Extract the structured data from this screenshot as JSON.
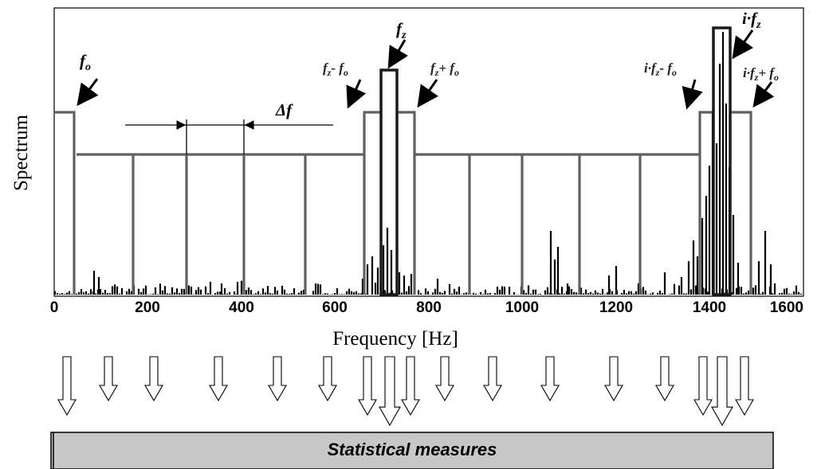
{
  "axes": {
    "ylabel": "Spectrum",
    "xlabel": "Frequency [Hz]",
    "xlim": [
      0,
      1600
    ],
    "xticks": [
      "0",
      "200",
      "400",
      "600",
      "800",
      "1000",
      "1200",
      "1400",
      "1600"
    ]
  },
  "labels": {
    "fo": "f",
    "fo_sub": "o",
    "fz": "f",
    "fz_sub": "z",
    "fz_minus_fo": "f",
    "fz_minus_fo_sub": "z",
    "fz_minus_fo_rest": "- f",
    "fz_minus_fo_sub2": "o",
    "fz_plus_fo": "f",
    "fz_plus_fo_sub": "z",
    "fz_plus_fo_rest": "+ f",
    "fz_plus_fo_sub2": "o",
    "delta_f": "Δf",
    "ifz_minus_fo": "i·f",
    "ifz_minus_fo_sub": "z",
    "ifz_minus_fo_rest": "- f",
    "ifz_minus_fo_sub2": "o",
    "ifz": "i·f",
    "ifz_sub": "z",
    "ifz_plus_fo": "i·f",
    "ifz_plus_fo_sub": "z",
    "ifz_plus_fo_rest": "+ f",
    "ifz_plus_fo_sub2": "o"
  },
  "bands": {
    "low_band_boundaries_hz": [
      41,
      170,
      290,
      410,
      530,
      660
    ],
    "mid_band_boundaries_hz": [
      775,
      890,
      1000,
      1120,
      1250,
      1375
    ],
    "fo_hz": 41,
    "fz_hz": 720,
    "ifz_hz": 1435
  },
  "banner": {
    "label": "Statistical measures"
  },
  "colors": {
    "band_gray": "#606060",
    "dark": "#1a1a1a",
    "banner_fill": "#c8c8c8"
  }
}
